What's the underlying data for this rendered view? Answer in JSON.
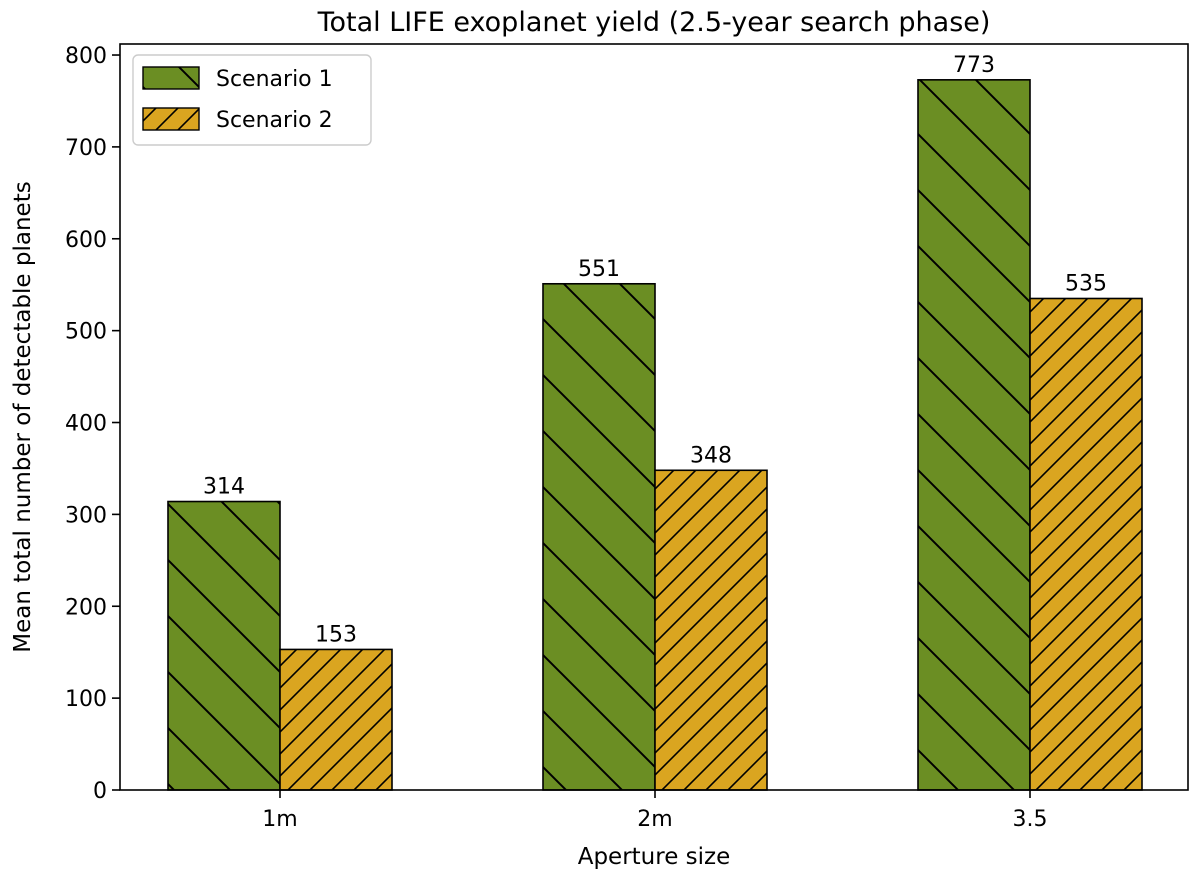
{
  "chart_data": {
    "type": "bar",
    "title": "Total LIFE exoplanet yield (2.5-year search phase)",
    "xlabel": "Aperture size",
    "ylabel": "Mean total number of detectable planets",
    "categories": [
      "1m",
      "2m",
      "3.5"
    ],
    "series": [
      {
        "name": "Scenario 1",
        "values": [
          314,
          551,
          773
        ],
        "color": "#6b8e23",
        "hatch": "backslash"
      },
      {
        "name": "Scenario 2",
        "values": [
          153,
          348,
          535
        ],
        "color": "#daa520",
        "hatch": "slash"
      }
    ],
    "ylim": [
      0,
      812
    ],
    "yticks": [
      0,
      100,
      200,
      300,
      400,
      500,
      600,
      700,
      800
    ],
    "legend_position": "top-left",
    "grid": false,
    "data_labels": true
  }
}
